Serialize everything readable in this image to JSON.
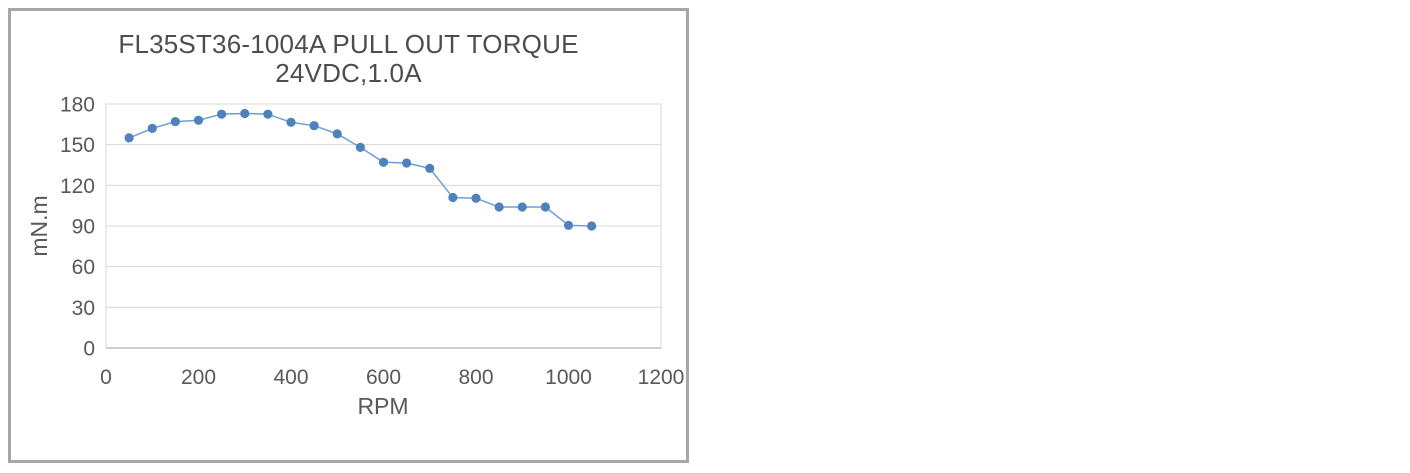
{
  "window": {
    "background_color": "#ffffff",
    "frame_border_color": "#a6a6a6"
  },
  "chart_data": {
    "type": "line",
    "title": "FL35ST36-1004A PULL OUT TORQUE",
    "subtitle": "24VDC,1.0A",
    "xlabel": "RPM",
    "ylabel": "mN.m",
    "x": [
      50,
      100,
      150,
      200,
      250,
      300,
      350,
      400,
      450,
      500,
      550,
      600,
      650,
      700,
      750,
      800,
      850,
      900,
      950,
      1000,
      1050
    ],
    "values": [
      155,
      162,
      167,
      168,
      172.5,
      173,
      172.5,
      166.5,
      164,
      158,
      148,
      137,
      136.5,
      132.5,
      111,
      110.5,
      104,
      104,
      104,
      90.5,
      90
    ],
    "xlim": [
      0,
      1200
    ],
    "ylim": [
      0,
      180
    ],
    "x_ticks": [
      0,
      200,
      400,
      600,
      800,
      1000,
      1200
    ],
    "y_ticks": [
      0,
      30,
      60,
      90,
      120,
      150,
      180
    ],
    "grid": "horizontal",
    "legend_position": "none",
    "marker": "circle",
    "series_color": "#4f81bd",
    "line_color": "#6f9fd4",
    "gridline_color": "#d9d9d9",
    "plot_border_color": "#d9d9d9",
    "axis_line_color": "#bfbfbf",
    "text_color": "#595959"
  }
}
